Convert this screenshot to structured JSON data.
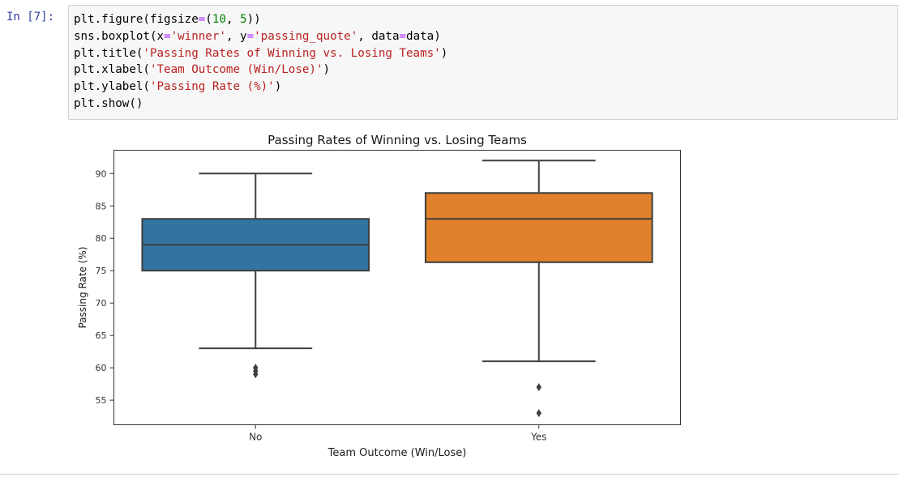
{
  "notebook": {
    "prompt": "In [7]:",
    "code_lines": [
      [
        "plt.figure(figsize",
        {
          "op": "="
        },
        "(",
        {
          "num": "10"
        },
        ", ",
        {
          "num": "5"
        },
        "))"
      ],
      [
        "sns.boxplot(x",
        {
          "op": "="
        },
        {
          "str": "'winner'"
        },
        ", y",
        {
          "op": "="
        },
        {
          "str": "'passing_quote'"
        },
        ", data",
        {
          "op": "="
        },
        "data)"
      ],
      [
        "plt.title(",
        {
          "str": "'Passing Rates of Winning vs. Losing Teams'"
        },
        ")"
      ],
      [
        "plt.xlabel(",
        {
          "str": "'Team Outcome (Win/Lose)'"
        },
        ")"
      ],
      [
        "plt.ylabel(",
        {
          "str": "'Passing Rate (%)'"
        },
        ")"
      ],
      [
        "plt.show()"
      ]
    ]
  },
  "colors": {
    "no_box": "#3274a1",
    "yes_box": "#e1812c",
    "line": "#3f3f3f"
  },
  "chart_data": {
    "type": "box",
    "title": "Passing Rates of Winning vs. Losing Teams",
    "xlabel": "Team Outcome (Win/Lose)",
    "ylabel": "Passing Rate (%)",
    "ylim": [
      51.2,
      93.6
    ],
    "yticks": [
      55,
      60,
      65,
      70,
      75,
      80,
      85,
      90
    ],
    "categories": [
      "No",
      "Yes"
    ],
    "boxes": [
      {
        "name": "No",
        "whisker_low": 63,
        "q1": 75,
        "median": 79,
        "q3": 83,
        "whisker_high": 90,
        "outliers": [
          60,
          59.5,
          59
        ]
      },
      {
        "name": "Yes",
        "whisker_low": 61,
        "q1": 76.3,
        "median": 83,
        "q3": 87,
        "whisker_high": 92,
        "outliers": [
          57,
          53
        ]
      }
    ]
  }
}
